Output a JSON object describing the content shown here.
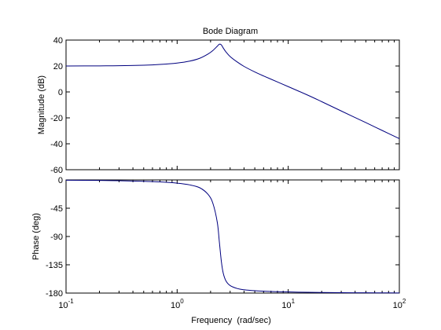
{
  "chart_data": {
    "type": "line",
    "title": "Bode Diagram",
    "xlabel": "Frequency  (rad/sec)",
    "x_scale": "log",
    "xlim": [
      0.1,
      100
    ],
    "x_ticks": [
      {
        "base": "10",
        "exp": "-1"
      },
      {
        "base": "10",
        "exp": "0"
      },
      {
        "base": "10",
        "exp": "1"
      },
      {
        "base": "10",
        "exp": "2"
      }
    ],
    "line_color": "#00007f",
    "grid": false,
    "panels": [
      {
        "name": "magnitude",
        "ylabel": "Magnitude (dB)",
        "ylim": [
          -60,
          40
        ],
        "y_ticks": [
          "40",
          "20",
          "0",
          "-20",
          "-40",
          "-60"
        ],
        "series": [
          {
            "x": [
              0.1,
              0.2,
              0.3,
              0.5,
              0.7,
              1.0,
              1.3,
              1.6,
              1.9,
              2.1,
              2.3,
              2.4,
              2.5,
              2.6,
              2.75,
              3.0,
              3.5,
              4.0,
              5.0,
              6.0,
              8.0,
              10.0,
              15.0,
              20.0,
              30.0,
              50.0,
              70.0,
              100.0
            ],
            "y": [
              20.0,
              20.1,
              20.2,
              20.6,
              21.2,
              22.3,
              23.8,
              26.0,
              29.3,
              32.0,
              35.3,
              36.8,
              36.3,
              33.9,
              30.9,
              27.3,
              22.9,
              19.7,
              15.4,
              12.3,
              7.7,
              4.1,
              -2.5,
              -7.5,
              -14.7,
              -23.7,
              -29.7,
              -36.0
            ]
          }
        ]
      },
      {
        "name": "phase",
        "ylabel": "Phase (deg)",
        "ylim": [
          -180,
          0
        ],
        "y_ticks": [
          "0",
          "-45",
          "-90",
          "-135",
          "-180"
        ],
        "series": [
          {
            "x": [
              0.1,
              0.2,
              0.3,
              0.5,
              0.7,
              1.0,
              1.3,
              1.6,
              1.9,
              2.1,
              2.3,
              2.4,
              2.5,
              2.6,
              2.75,
              3.0,
              3.5,
              4.0,
              5.0,
              6.0,
              8.0,
              10.0,
              15.0,
              20.0,
              30.0,
              50.0,
              70.0,
              100.0
            ],
            "y": [
              -0.4,
              -0.8,
              -1.3,
              -2.2,
              -3.2,
              -5.2,
              -7.9,
              -12.5,
              -23.1,
              -37.5,
              -67.8,
              -99.0,
              -129.6,
              -148.3,
              -160.6,
              -168.0,
              -172.9,
              -174.7,
              -176.3,
              -177.0,
              -177.8,
              -178.2,
              -178.8,
              -179.1,
              -179.4,
              -179.6,
              -179.7,
              -179.8
            ]
          }
        ]
      }
    ]
  }
}
